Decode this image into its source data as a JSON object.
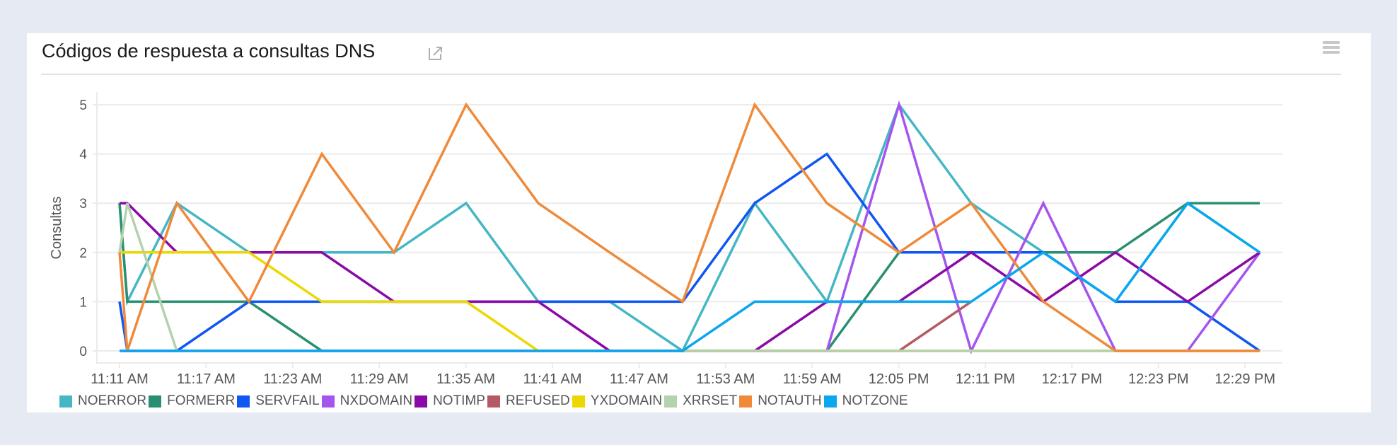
{
  "panel": {
    "title": "Códigos de respuesta a consultas DNS",
    "external_link_icon": "external-link-icon",
    "menu_icon": "hamburger-menu-icon"
  },
  "chart_data": {
    "type": "line",
    "title": "Códigos de respuesta a consultas DNS",
    "xlabel": "",
    "ylabel": "Consultas",
    "ylim": [
      0,
      5
    ],
    "yticks": [
      "0",
      "1",
      "2",
      "3",
      "4",
      "5"
    ],
    "xtick_labels": [
      "11:11 AM",
      "11:17 AM",
      "11:23 AM",
      "11:29 AM",
      "11:35 AM",
      "11:41 AM",
      "11:47 AM",
      "11:53 AM",
      "11:59 AM",
      "12:05 PM",
      "12:11 PM",
      "12:17 PM",
      "12:23 PM",
      "12:29 PM"
    ],
    "grid": true,
    "legend_position": "bottom",
    "x": [
      "11:11",
      "11:11:30",
      "11:15",
      "11:20",
      "11:25",
      "11:30",
      "11:35",
      "11:40",
      "11:45",
      "11:50",
      "11:55",
      "12:00",
      "12:05",
      "12:10",
      "12:15",
      "12:20",
      "12:25",
      "12:30"
    ],
    "series": [
      {
        "name": "NOERROR",
        "color": "#45b7c4",
        "values": [
          3,
          1,
          3,
          2,
          2,
          2,
          3,
          1,
          1,
          0,
          3,
          1,
          5,
          3,
          2,
          1,
          3,
          2
        ]
      },
      {
        "name": "FORMERR",
        "color": "#2a8f72",
        "values": [
          3,
          1,
          1,
          1,
          0,
          0,
          0,
          0,
          0,
          0,
          0,
          0,
          2,
          2,
          2,
          2,
          3,
          3
        ]
      },
      {
        "name": "SERVFAIL",
        "color": "#0f56f2",
        "values": [
          1,
          0,
          0,
          1,
          1,
          1,
          1,
          1,
          1,
          1,
          3,
          4,
          2,
          2,
          2,
          1,
          1,
          0
        ]
      },
      {
        "name": "NXDOMAIN",
        "color": "#a555ee",
        "values": [
          0,
          0,
          0,
          0,
          0,
          0,
          0,
          0,
          0,
          0,
          0,
          0,
          5,
          0,
          3,
          0,
          0,
          2
        ]
      },
      {
        "name": "NOTIMP",
        "color": "#8a0aa8",
        "values": [
          3,
          3,
          2,
          2,
          2,
          1,
          1,
          1,
          0,
          0,
          0,
          1,
          1,
          2,
          1,
          2,
          1,
          2
        ]
      },
      {
        "name": "REFUSED",
        "color": "#b55a64",
        "values": [
          null,
          null,
          null,
          null,
          null,
          null,
          null,
          null,
          null,
          0,
          0,
          0,
          0,
          1,
          null,
          null,
          null,
          null
        ]
      },
      {
        "name": "YXDOMAIN",
        "color": "#ecd800",
        "values": [
          2,
          2,
          2,
          2,
          1,
          1,
          1,
          0,
          0,
          0,
          0,
          0,
          0,
          0,
          0,
          0,
          0,
          0
        ]
      },
      {
        "name": "XRRSET",
        "color": "#b4d2ad",
        "values": [
          2,
          3,
          0,
          0,
          0,
          0,
          0,
          0,
          0,
          0,
          0,
          0,
          0,
          0,
          0,
          0,
          0,
          0
        ]
      },
      {
        "name": "NOTAUTH",
        "color": "#ef8a3a",
        "values": [
          2,
          0,
          3,
          1,
          4,
          2,
          5,
          3,
          2,
          1,
          5,
          3,
          2,
          3,
          1,
          0,
          0,
          0
        ]
      },
      {
        "name": "NOTZONE",
        "color": "#0aa6ee",
        "values": [
          0,
          0,
          0,
          0,
          0,
          0,
          0,
          0,
          0,
          0,
          1,
          1,
          1,
          1,
          2,
          1,
          3,
          2
        ]
      }
    ]
  },
  "legend": {
    "items": [
      "NOERROR",
      "FORMERR",
      "SERVFAIL",
      "NXDOMAIN",
      "NOTIMP",
      "REFUSED",
      "YXDOMAIN",
      "XRRSET",
      "NOTAUTH",
      "NOTZONE"
    ]
  }
}
